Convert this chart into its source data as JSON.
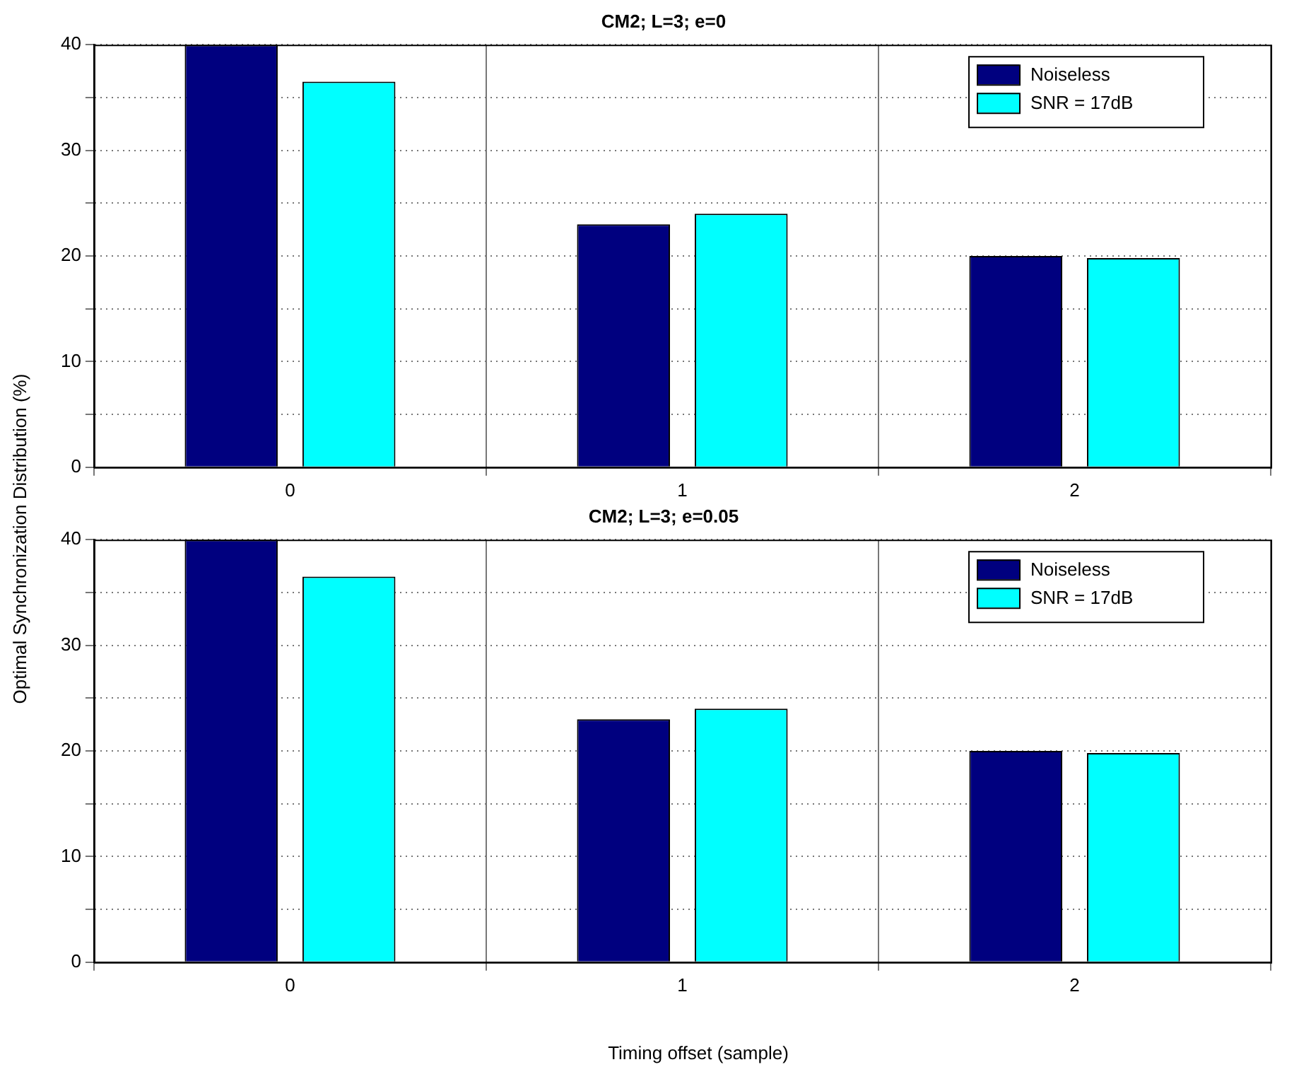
{
  "chart_data": [
    {
      "type": "bar",
      "title": "CM2; L=3; e=0",
      "ylabel": "Optimal Synchronization Distribution (%)",
      "categories": [
        "0",
        "1",
        "2"
      ],
      "series": [
        {
          "name": "Noiseless",
          "color": "#00007f",
          "values": [
            40,
            23,
            20
          ]
        },
        {
          "name": "SNR = 17dB",
          "color": "#00ffff",
          "values": [
            36.5,
            24,
            19.8
          ]
        }
      ],
      "ylim": [
        0,
        40
      ],
      "yticks": [
        0,
        {
          "value": 5,
          "label": null
        },
        10,
        {
          "value": 15,
          "label": null
        },
        20,
        {
          "value": 25,
          "label": null
        },
        30,
        {
          "value": 35,
          "label": null
        },
        40
      ],
      "grid": true,
      "legend": "top right"
    },
    {
      "type": "bar",
      "title": "CM2; L=3; e=0.05",
      "xlabel": "Timing offset (sample)",
      "categories": [
        "0",
        "1",
        "2"
      ],
      "series": [
        {
          "name": "Noiseless",
          "color": "#00007f",
          "values": [
            40,
            23,
            20
          ]
        },
        {
          "name": "SNR = 17dB",
          "color": "#00ffff",
          "values": [
            36.5,
            24,
            19.8
          ]
        }
      ],
      "ylim": [
        0,
        40
      ],
      "yticks": [
        0,
        {
          "value": 5,
          "label": null
        },
        10,
        {
          "value": 15,
          "label": null
        },
        20,
        {
          "value": 25,
          "label": null
        },
        30,
        {
          "value": 35,
          "label": null
        },
        40
      ],
      "grid": true,
      "legend": "top right"
    }
  ]
}
